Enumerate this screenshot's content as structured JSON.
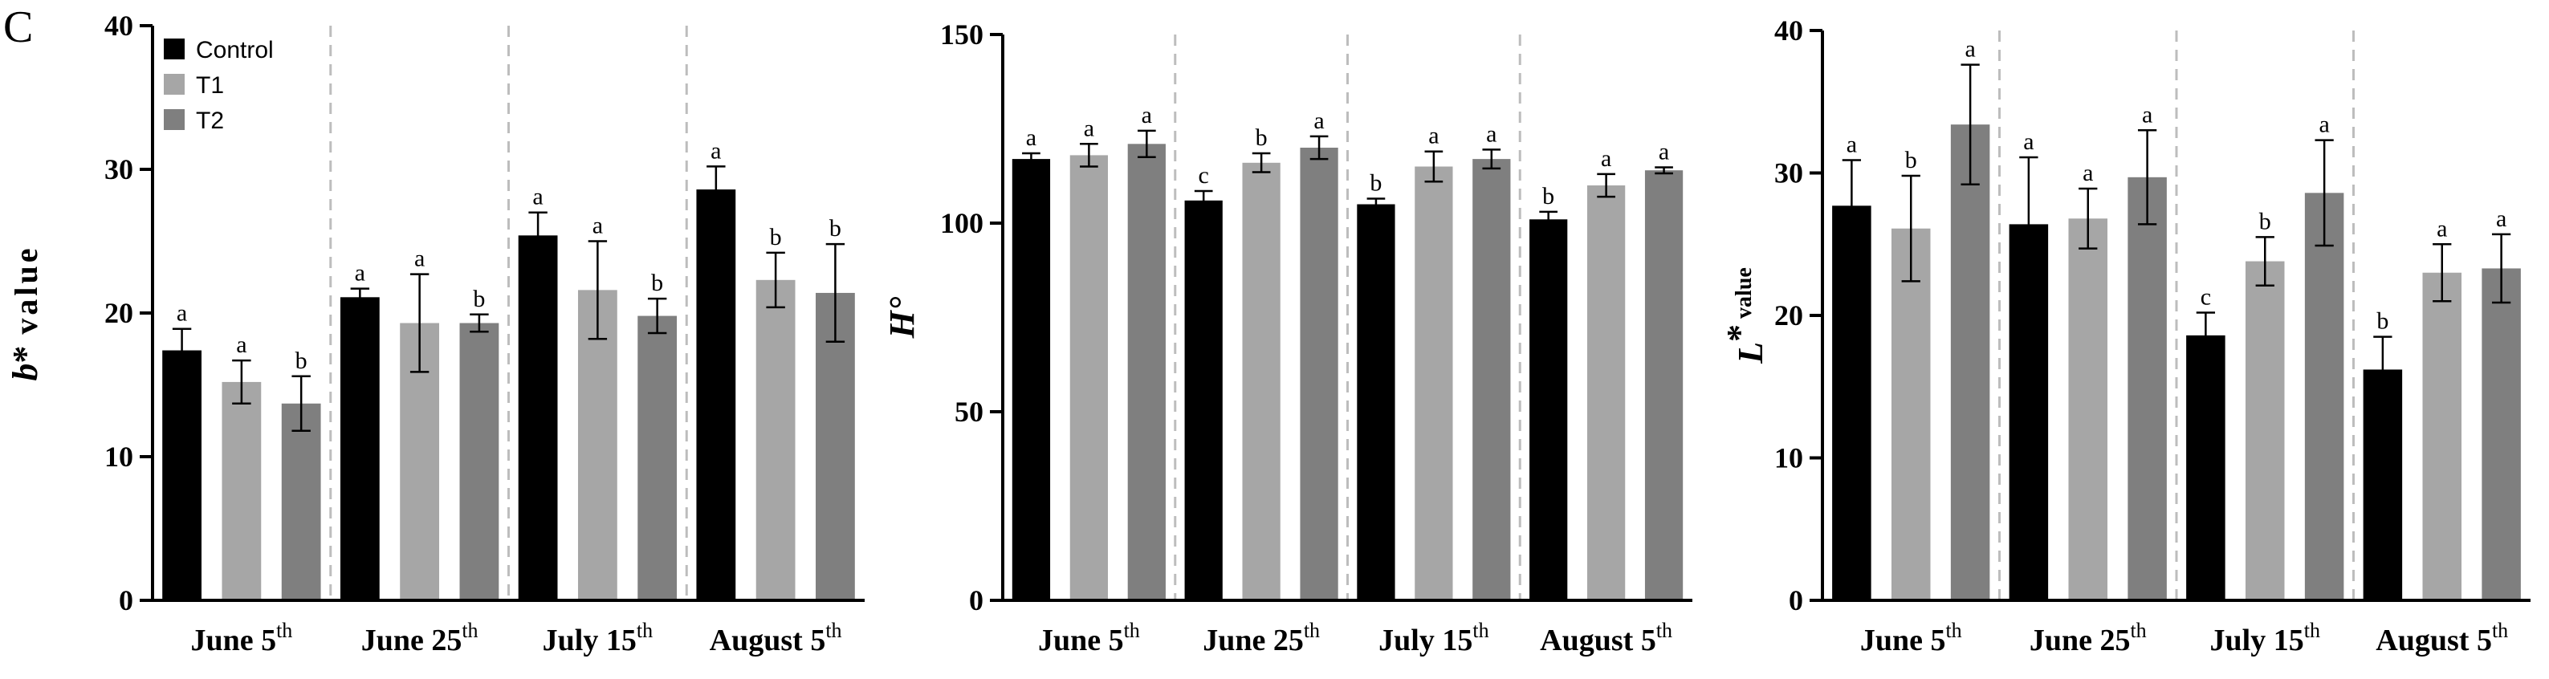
{
  "panel_label": "C",
  "legend": [
    {
      "label": "Control",
      "color": "#000000"
    },
    {
      "label": "T1",
      "color": "#a6a6a6"
    },
    {
      "label": "T2",
      "color": "#7f7f7f"
    }
  ],
  "chart_data": [
    {
      "type": "bar",
      "ylabel_main": "b",
      "ylabel_star": "*",
      "ylabel_rest": " value",
      "ylim": [
        0,
        40
      ],
      "yticks": [
        0,
        10,
        20,
        30,
        40
      ],
      "categories": [
        {
          "main": "June 5",
          "sup": "th"
        },
        {
          "main": "June 25",
          "sup": "th"
        },
        {
          "main": "July 15",
          "sup": "th"
        },
        {
          "main": "August 5",
          "sup": "th"
        }
      ],
      "series": [
        {
          "name": "Control",
          "color": "#000000",
          "values": [
            17.4,
            21.1,
            25.4,
            28.6
          ],
          "errors": [
            1.5,
            0.6,
            1.6,
            1.6
          ],
          "letters": [
            "a",
            "a",
            "a",
            "a"
          ]
        },
        {
          "name": "T1",
          "color": "#a6a6a6",
          "values": [
            15.2,
            19.3,
            21.6,
            22.3
          ],
          "errors": [
            1.5,
            3.4,
            3.4,
            1.9
          ],
          "letters": [
            "a",
            "a",
            "a",
            "b"
          ]
        },
        {
          "name": "T2",
          "color": "#7f7f7f",
          "values": [
            13.7,
            19.3,
            19.8,
            21.4
          ],
          "errors": [
            1.9,
            0.6,
            1.2,
            3.4
          ],
          "letters": [
            "b",
            "b",
            "b",
            "b"
          ]
        }
      ]
    },
    {
      "type": "bar",
      "ylabel_main": "H°",
      "ylabel_star": "",
      "ylabel_rest": "",
      "ylim": [
        0,
        150
      ],
      "yticks": [
        0,
        50,
        100,
        150
      ],
      "categories": [
        {
          "main": "June 5",
          "sup": "th"
        },
        {
          "main": "June 25",
          "sup": "th"
        },
        {
          "main": "July 15",
          "sup": "th"
        },
        {
          "main": "August 5",
          "sup": "th"
        }
      ],
      "series": [
        {
          "name": "Control",
          "color": "#000000",
          "values": [
            117,
            106,
            105,
            101
          ],
          "errors": [
            1.5,
            2.5,
            1.5,
            2.0
          ],
          "letters": [
            "a",
            "c",
            "b",
            "b"
          ]
        },
        {
          "name": "T1",
          "color": "#a6a6a6",
          "values": [
            118,
            116,
            115,
            110
          ],
          "errors": [
            3.0,
            2.5,
            4.0,
            3.0
          ],
          "letters": [
            "a",
            "b",
            "a",
            "a"
          ]
        },
        {
          "name": "T2",
          "color": "#7f7f7f",
          "values": [
            121,
            120,
            117,
            114
          ],
          "errors": [
            3.5,
            3.0,
            2.5,
            0.8
          ],
          "letters": [
            "a",
            "a",
            "a",
            "a"
          ]
        }
      ]
    },
    {
      "type": "bar",
      "ylabel_main": "L",
      "ylabel_star": "*",
      "ylabel_rest": " value",
      "ylim": [
        0,
        40
      ],
      "yticks": [
        0,
        10,
        20,
        30,
        40
      ],
      "categories": [
        {
          "main": "June 5",
          "sup": "th"
        },
        {
          "main": "June 25",
          "sup": "th"
        },
        {
          "main": "July 15",
          "sup": "th"
        },
        {
          "main": "August 5",
          "sup": "th"
        }
      ],
      "series": [
        {
          "name": "Control",
          "color": "#000000",
          "values": [
            27.7,
            26.4,
            18.6,
            16.2
          ],
          "errors": [
            3.2,
            4.7,
            1.6,
            2.3
          ],
          "letters": [
            "a",
            "a",
            "c",
            "b"
          ]
        },
        {
          "name": "T1",
          "color": "#a6a6a6",
          "values": [
            26.1,
            26.8,
            23.8,
            23.0
          ],
          "errors": [
            3.7,
            2.1,
            1.7,
            2.0
          ],
          "letters": [
            "b",
            "a",
            "b",
            "a"
          ]
        },
        {
          "name": "T2",
          "color": "#7f7f7f",
          "values": [
            33.4,
            29.7,
            28.6,
            23.3
          ],
          "errors": [
            4.2,
            3.3,
            3.7,
            2.4
          ],
          "letters": [
            "a",
            "a",
            "a",
            "a"
          ]
        }
      ]
    }
  ]
}
